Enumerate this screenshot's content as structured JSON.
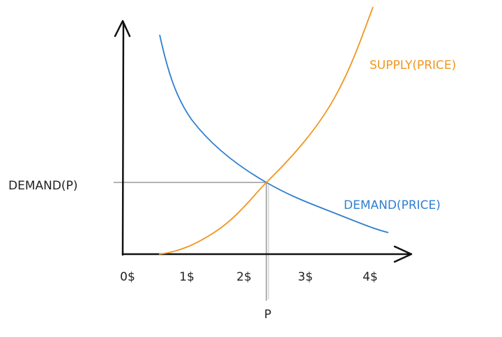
{
  "axes": {
    "x_tick_labels": [
      "0$",
      "1$",
      "2$",
      "3$",
      "4$"
    ],
    "y_marker_label": "DEMAND(P)",
    "x_marker_label": "P"
  },
  "curves": {
    "supply": {
      "label": "SUPPLY(PRICE)"
    },
    "demand": {
      "label": "DEMAND(PRICE)"
    }
  }
}
